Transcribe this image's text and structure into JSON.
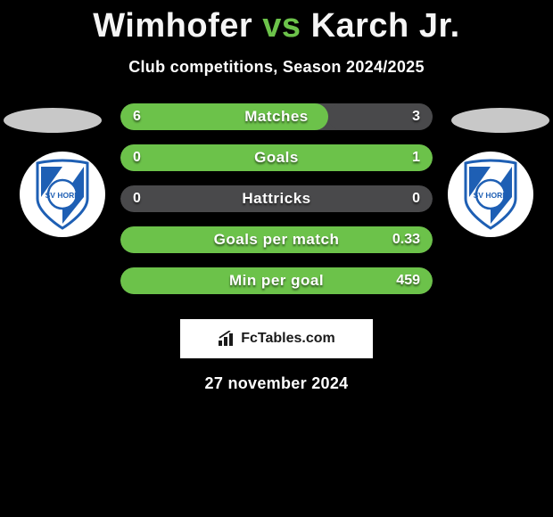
{
  "title": {
    "player1": "Wimhofer",
    "vs": "vs",
    "player2": "Karch Jr.",
    "player1_color": "#f5f5f5",
    "vs_color": "#6cc24a",
    "player2_color": "#f5f5f5",
    "fontsize": 38
  },
  "subtitle": {
    "text": "Club competitions, Season 2024/2025",
    "color": "#ffffff",
    "fontsize": 18
  },
  "crest": {
    "ring_color": "#ffffff",
    "shield_blue": "#1e5fb4",
    "shield_white": "#ffffff",
    "text": "SV HORN",
    "text_color": "#1e5fb4"
  },
  "ellipse_color": "#c8c8c8",
  "bars": {
    "height": 30,
    "radius": 15,
    "gap": 16,
    "label_fontsize": 17,
    "value_fontsize": 16,
    "rows": [
      {
        "label": "Matches",
        "left_value": "6",
        "right_value": "3",
        "left_raw": 6,
        "right_raw": 3,
        "left_pct": 66.7,
        "right_pct": 33.3,
        "left_color": "#6cc24a",
        "right_color": "#49494b",
        "track_color": "#49494b"
      },
      {
        "label": "Goals",
        "left_value": "0",
        "right_value": "1",
        "left_raw": 0,
        "right_raw": 1,
        "left_pct": 0,
        "right_pct": 100,
        "left_color": "#6cc24a",
        "right_color": "#6cc24a",
        "track_color": "#49494b"
      },
      {
        "label": "Hattricks",
        "left_value": "0",
        "right_value": "0",
        "left_raw": 0,
        "right_raw": 0,
        "left_pct": 0,
        "right_pct": 0,
        "left_color": "#6cc24a",
        "right_color": "#6cc24a",
        "track_color": "#49494b"
      },
      {
        "label": "Goals per match",
        "left_value": "",
        "right_value": "0.33",
        "left_raw": 0,
        "right_raw": 0.33,
        "left_pct": 0,
        "right_pct": 100,
        "left_color": "#6cc24a",
        "right_color": "#6cc24a",
        "track_color": "#49494b"
      },
      {
        "label": "Min per goal",
        "left_value": "",
        "right_value": "459",
        "left_raw": 0,
        "right_raw": 459,
        "left_pct": 0,
        "right_pct": 100,
        "left_color": "#6cc24a",
        "right_color": "#6cc24a",
        "track_color": "#49494b"
      }
    ]
  },
  "footer": {
    "brand_icon_color": "#1a1a1a",
    "brand_text_prefix": "Fc",
    "brand_text_suffix": "Tables.com",
    "box_bg": "#ffffff"
  },
  "date": {
    "text": "27 november 2024",
    "color": "#ffffff",
    "fontsize": 18
  },
  "background_color": "#000000"
}
